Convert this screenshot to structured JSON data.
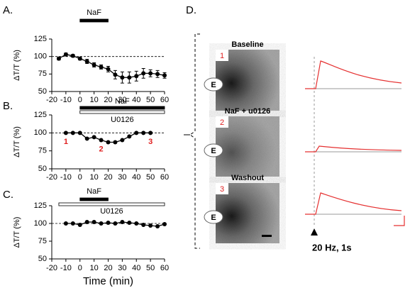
{
  "chart_data": [
    {
      "type": "line",
      "panel_label": "A.",
      "ylabel": "ΔT/T (%)",
      "x": [
        -15,
        -10,
        -5,
        0,
        5,
        10,
        15,
        20,
        25,
        30,
        35,
        40,
        45,
        50,
        55,
        60
      ],
      "values": [
        97,
        103,
        101,
        97,
        93,
        88,
        85,
        82,
        74,
        70,
        70,
        72,
        76,
        76,
        75,
        73
      ],
      "errors": [
        2,
        2,
        2,
        2,
        3,
        3,
        3,
        4,
        6,
        8,
        8,
        7,
        7,
        5,
        5,
        4
      ],
      "color": "#000000",
      "reference_line": 100,
      "xlim": [
        -20,
        60
      ],
      "xticks": [
        -20,
        -10,
        0,
        10,
        20,
        30,
        40,
        50,
        60
      ],
      "ylim": [
        50,
        125
      ],
      "yticks": [
        50,
        75,
        100,
        125
      ],
      "treatment_bars": [
        {
          "label": "NaF",
          "start": 0,
          "end": 20,
          "style": "filled"
        }
      ]
    },
    {
      "type": "line",
      "panel_label": "B.",
      "ylabel": "ΔT/T (%)",
      "x": [
        -10,
        -5,
        0,
        5,
        10,
        15,
        20,
        25,
        30,
        35,
        40,
        45,
        50
      ],
      "values": [
        100,
        100,
        100,
        92,
        94,
        90,
        87,
        87,
        90,
        95,
        100,
        100,
        100
      ],
      "color": "#000000",
      "reference_line": 100,
      "xlim": [
        -20,
        60
      ],
      "xticks": [
        -20,
        -10,
        0,
        10,
        20,
        30,
        40,
        50,
        60
      ],
      "ylim": [
        50,
        125
      ],
      "yticks": [
        50,
        75,
        100,
        125
      ],
      "treatment_bars": [
        {
          "label": "NaF",
          "start": 0,
          "end": 60,
          "style": "filled"
        },
        {
          "label": "U0126",
          "start": 0,
          "end": 60,
          "style": "open"
        }
      ],
      "annotations": [
        {
          "text": "1",
          "x": -10
        },
        {
          "text": "2",
          "x": 15
        },
        {
          "text": "3",
          "x": 50
        }
      ],
      "annotation_color": "#e02020"
    },
    {
      "type": "line",
      "panel_label": "C.",
      "ylabel": "ΔT/T (%)",
      "xlabel": "Time (min)",
      "x": [
        -10,
        -5,
        0,
        5,
        10,
        15,
        20,
        25,
        30,
        35,
        40,
        45,
        50,
        55,
        60
      ],
      "values": [
        100,
        100,
        98,
        102,
        102,
        100,
        101,
        100,
        102,
        101,
        100,
        98,
        97,
        96,
        99
      ],
      "color": "#000000",
      "reference_line": 100,
      "xlim": [
        -20,
        60
      ],
      "xticks": [
        -20,
        -10,
        0,
        10,
        20,
        30,
        40,
        50,
        60
      ],
      "ylim": [
        50,
        125
      ],
      "yticks": [
        50,
        75,
        100,
        125
      ],
      "treatment_bars": [
        {
          "label": "U0126",
          "start": -15,
          "end": 60,
          "style": "open"
        },
        {
          "label": "NaF",
          "start": 0,
          "end": 20,
          "style": "filled"
        }
      ]
    }
  ],
  "panel_d": {
    "panel_label": "D.",
    "images": [
      {
        "title": "Baseline",
        "number": "1",
        "electrode": "E"
      },
      {
        "title": "NaF + u0126",
        "number": "2",
        "electrode": "E"
      },
      {
        "title": "Washout",
        "number": "3",
        "electrode": "E"
      }
    ],
    "stimulus": "20 Hz, 1s"
  }
}
